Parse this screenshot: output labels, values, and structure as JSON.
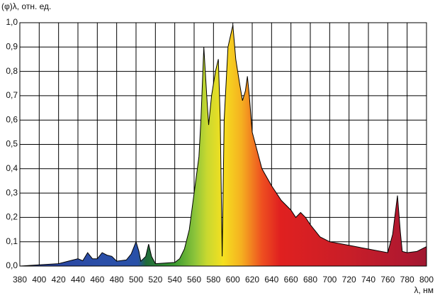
{
  "chart_data": {
    "type": "area",
    "y_label": "(φ)λ, отн. ед.",
    "x_label": "λ, нм",
    "x": [
      380,
      400,
      420,
      430,
      440,
      445,
      450,
      455,
      460,
      465,
      470,
      475,
      480,
      490,
      495,
      500,
      503,
      505,
      510,
      513,
      516,
      520,
      540,
      545,
      550,
      555,
      560,
      565,
      567,
      570,
      573,
      575,
      578,
      582,
      585,
      587,
      589,
      591,
      595,
      600,
      603,
      607,
      610,
      613,
      615,
      617,
      620,
      630,
      640,
      650,
      660,
      665,
      670,
      675,
      680,
      690,
      700,
      720,
      740,
      760,
      765,
      770,
      773,
      775,
      780,
      790,
      800
    ],
    "values": [
      0.0,
      0.005,
      0.01,
      0.02,
      0.03,
      0.022,
      0.055,
      0.03,
      0.03,
      0.055,
      0.045,
      0.04,
      0.02,
      0.025,
      0.05,
      0.1,
      0.06,
      0.02,
      0.04,
      0.09,
      0.04,
      0.01,
      0.015,
      0.03,
      0.07,
      0.15,
      0.3,
      0.45,
      0.6,
      0.9,
      0.7,
      0.58,
      0.7,
      0.8,
      0.85,
      0.6,
      0.04,
      0.6,
      0.9,
      0.99,
      0.85,
      0.75,
      0.68,
      0.72,
      0.78,
      0.7,
      0.55,
      0.4,
      0.33,
      0.27,
      0.23,
      0.2,
      0.22,
      0.2,
      0.17,
      0.12,
      0.1,
      0.085,
      0.07,
      0.055,
      0.13,
      0.29,
      0.14,
      0.06,
      0.055,
      0.06,
      0.08
    ],
    "color": "#000000",
    "xlim": [
      380,
      800
    ],
    "xticks": [
      380,
      400,
      420,
      440,
      460,
      480,
      500,
      520,
      540,
      560,
      580,
      600,
      620,
      640,
      660,
      680,
      700,
      720,
      740,
      760,
      780,
      800
    ],
    "ylim": [
      0,
      1
    ],
    "yticks": [
      {
        "value": 0,
        "label": "0,0"
      },
      {
        "value": 0.1,
        "label": "0,1"
      },
      {
        "value": 0.2,
        "label": "0,2"
      },
      {
        "value": 0.3,
        "label": "0,3"
      },
      {
        "value": 0.4,
        "label": "0,4"
      },
      {
        "value": 0.5,
        "label": "0,5"
      },
      {
        "value": 0.6,
        "label": "0,6"
      },
      {
        "value": 0.7,
        "label": "0,7"
      },
      {
        "value": 0.8,
        "label": "0,8"
      },
      {
        "value": 0.9,
        "label": "0,9"
      },
      {
        "value": 1,
        "label": "1,0"
      }
    ],
    "grid": true
  }
}
